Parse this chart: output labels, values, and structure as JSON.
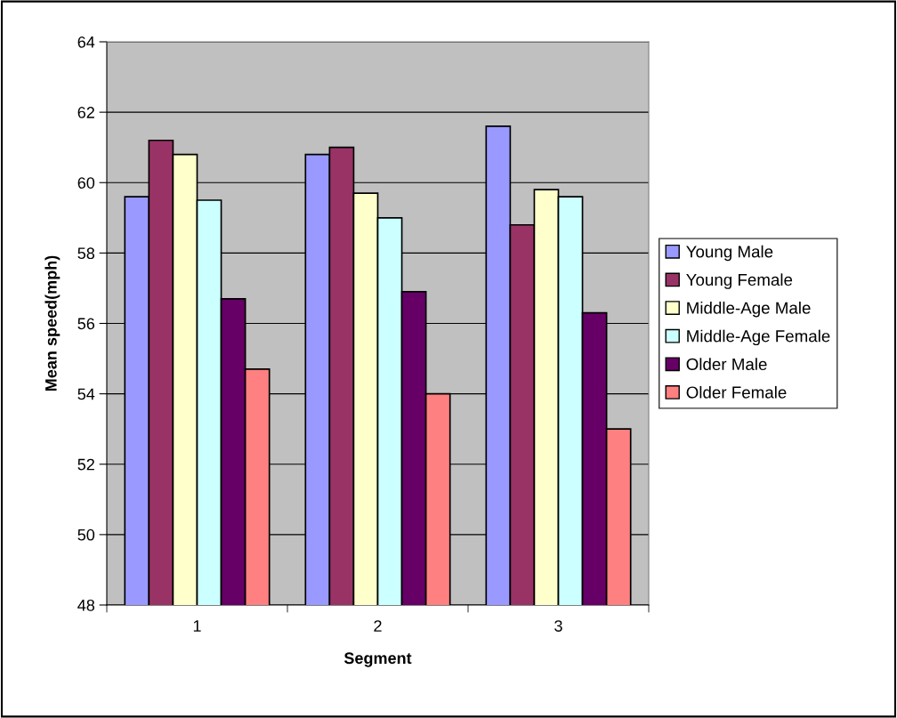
{
  "chart_data": {
    "type": "bar",
    "xlabel": "Segment",
    "ylabel": "Mean speed(mph)",
    "categories": [
      "1",
      "2",
      "3"
    ],
    "series": [
      {
        "name": "Young Male",
        "color": "#9999ff",
        "values": [
          59.6,
          60.8,
          61.6
        ]
      },
      {
        "name": "Young Female",
        "color": "#993366",
        "values": [
          61.2,
          61.0,
          58.8
        ]
      },
      {
        "name": "Middle-Age Male",
        "color": "#ffffcc",
        "values": [
          60.8,
          59.7,
          59.8
        ]
      },
      {
        "name": "Middle-Age Female",
        "color": "#ccffff",
        "values": [
          59.5,
          59.0,
          59.6
        ]
      },
      {
        "name": "Older Male",
        "color": "#660066",
        "values": [
          56.7,
          56.9,
          56.3
        ]
      },
      {
        "name": "Older Female",
        "color": "#ff8080",
        "values": [
          54.7,
          54.0,
          53.0
        ]
      }
    ],
    "ylim": [
      48,
      64
    ],
    "yticks": [
      48,
      50,
      52,
      54,
      56,
      58,
      60,
      62,
      64
    ],
    "grid": "y",
    "legend": "right"
  }
}
